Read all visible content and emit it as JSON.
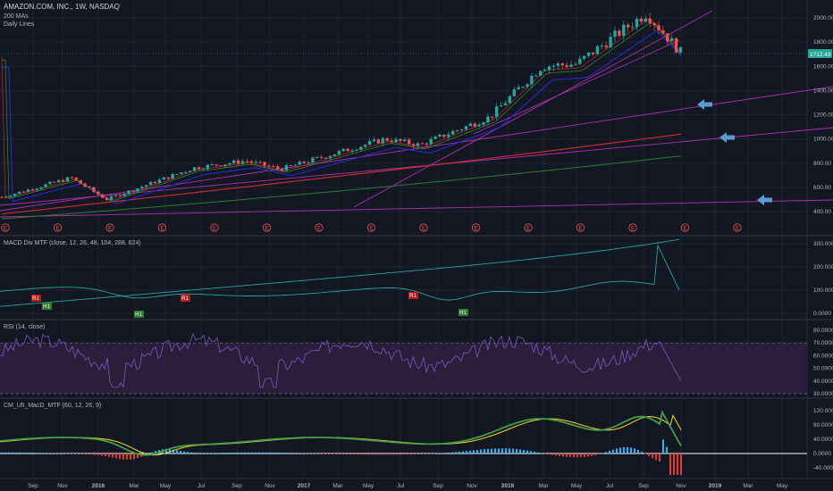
{
  "header": {
    "symbol": "AMAZON.COM, INC., 1W, NASDAQ",
    "indicator1": "200 MAs",
    "indicator2": "Daily Lines"
  },
  "price_tag": "1712.43",
  "colors": {
    "background": "#131722",
    "up": "#26a69a",
    "down": "#ef5350",
    "fib_line": "#b030b0",
    "arrow": "#5b9bd5",
    "ma_red": "#d32f2f",
    "ma_green": "#2e7d32",
    "ma_blue": "#2a2ae0"
  },
  "chart_data": [
    {
      "type": "candlestick",
      "title": "AMAZON.COM, INC., 1W, NASDAQ",
      "x_ticks": [
        "Sep",
        "Nov",
        "2016",
        "Mar",
        "May",
        "Jul",
        "Sep",
        "Nov",
        "2017",
        "Mar",
        "May",
        "Jul",
        "Sep",
        "Nov",
        "2018",
        "Mar",
        "May",
        "Jul",
        "Sep",
        "Nov",
        "2019",
        "Mar",
        "May"
      ],
      "y_ticks": [
        "2000.00",
        "1800.00",
        "1600.00",
        "1400.00",
        "1200.00",
        "1000.00",
        "800.00",
        "600.00",
        "400.00"
      ],
      "ylim": [
        300,
        2100
      ],
      "last_price": 1712.43,
      "earnings_markers": [
        "E",
        "E",
        "E",
        "E",
        "E",
        "E",
        "E",
        "E",
        "E",
        "E",
        "E",
        "E",
        "E",
        "E",
        "E"
      ],
      "key_closes": [
        {
          "date": "2015-08",
          "close": 520
        },
        {
          "date": "2015-12",
          "close": 680
        },
        {
          "date": "2016-02",
          "close": 500
        },
        {
          "date": "2016-07",
          "close": 760
        },
        {
          "date": "2016-10",
          "close": 820
        },
        {
          "date": "2016-12",
          "close": 750
        },
        {
          "date": "2017-06",
          "close": 1000
        },
        {
          "date": "2017-08",
          "close": 950
        },
        {
          "date": "2017-12",
          "close": 1180
        },
        {
          "date": "2018-03",
          "close": 1600
        },
        {
          "date": "2018-05",
          "close": 1620
        },
        {
          "date": "2018-09",
          "close": 2040
        },
        {
          "date": "2018-11",
          "close": 1712.43
        }
      ],
      "arrows": 3
    },
    {
      "type": "line",
      "title": "MACD Div MTF (close, 12, 26, 48, 104, 288, 624)",
      "y_ticks": [
        "300.0000",
        "200.0000",
        "100.0000",
        "0.0000"
      ],
      "ylim": [
        -20,
        330
      ],
      "labels": [
        "R1",
        "H1",
        "H1",
        "R1",
        "R1",
        "H1"
      ]
    },
    {
      "type": "line",
      "title": "RSI (14, close)",
      "y_ticks": [
        "80.0000",
        "70.0000",
        "60.0000",
        "50.0000",
        "40.0000",
        "30.0000"
      ],
      "ylim": [
        25,
        90
      ],
      "bands": [
        30,
        70
      ]
    },
    {
      "type": "line",
      "title": "CM_Ult_MacD_MTF (60, 12, 26, 9)",
      "y_ticks": [
        "120.0000",
        "80.0000",
        "40.0000",
        "0.0000",
        "-40.0000"
      ],
      "ylim": [
        -60,
        140
      ]
    }
  ]
}
